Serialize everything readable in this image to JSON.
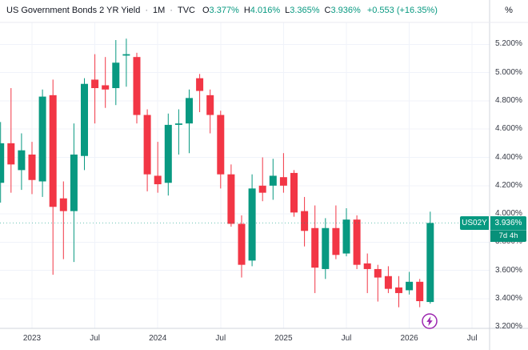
{
  "header": {
    "title": "US Government Bonds 2 YR Yield",
    "sep": "·",
    "interval": "1M",
    "source": "TVC",
    "ohlc": {
      "o_label": "O",
      "o": "3.377%",
      "h_label": "H",
      "h": "4.016%",
      "l_label": "L",
      "l": "3.365%",
      "c_label": "C",
      "c": "3.936%",
      "change": "+0.553 (+16.35%)"
    }
  },
  "price_axis": {
    "unit": "%",
    "ticks": [
      {
        "value": 5.2,
        "label": "5.200%"
      },
      {
        "value": 5.0,
        "label": "5.000%"
      },
      {
        "value": 4.8,
        "label": "4.800%"
      },
      {
        "value": 4.6,
        "label": "4.600%"
      },
      {
        "value": 4.4,
        "label": "4.400%"
      },
      {
        "value": 4.2,
        "label": "4.200%"
      },
      {
        "value": 4.0,
        "label": "4.000%"
      },
      {
        "value": 3.8,
        "label": "3.800%"
      },
      {
        "value": 3.6,
        "label": "3.600%"
      },
      {
        "value": 3.4,
        "label": "3.400%"
      },
      {
        "value": 3.2,
        "label": "3.200%"
      }
    ]
  },
  "time_axis": {
    "ticks": [
      {
        "label": "2023",
        "month_index": 3
      },
      {
        "label": "Jul",
        "month_index": 9
      },
      {
        "label": "2024",
        "month_index": 15
      },
      {
        "label": "Jul",
        "month_index": 21
      },
      {
        "label": "2025",
        "month_index": 27
      },
      {
        "label": "Jul",
        "month_index": 33
      },
      {
        "label": "2026",
        "month_index": 39
      },
      {
        "label": "Jul",
        "month_index": 45
      }
    ]
  },
  "price_badge": {
    "symbol": "US02Y",
    "price": "3.936%",
    "countdown": "7d 4h"
  },
  "colors": {
    "up": "#089981",
    "down": "#F23645",
    "badge": "#089981",
    "grid": "#f0f3fa",
    "axis_border": "#d1d4dc",
    "text": "#131722",
    "axis_text": "#363a45",
    "lightning_purple": "#9C27B0"
  },
  "chart_data": {
    "type": "candlestick",
    "title": "US Government Bonds 2 YR Yield, 1M, TVC",
    "ylabel": "Yield %",
    "ylim": [
      3.2,
      5.2
    ],
    "grid": true,
    "last_price": 3.936,
    "candles": [
      {
        "t": "Oct 2022",
        "o": 4.22,
        "h": 4.65,
        "l": 4.08,
        "c": 4.5
      },
      {
        "t": "Nov 2022",
        "o": 4.5,
        "h": 4.89,
        "l": 4.15,
        "c": 4.35
      },
      {
        "t": "Dec 2022",
        "o": 4.31,
        "h": 4.57,
        "l": 4.17,
        "c": 4.45
      },
      {
        "t": "Jan 2023",
        "o": 4.42,
        "h": 4.51,
        "l": 4.14,
        "c": 4.24
      },
      {
        "t": "Feb 2023",
        "o": 4.23,
        "h": 4.88,
        "l": 4.12,
        "c": 4.83
      },
      {
        "t": "Mar 2023",
        "o": 4.84,
        "h": 4.95,
        "l": 3.57,
        "c": 4.05
      },
      {
        "t": "Apr 2023",
        "o": 4.11,
        "h": 4.23,
        "l": 3.68,
        "c": 4.02
      },
      {
        "t": "May 2023",
        "o": 4.02,
        "h": 4.64,
        "l": 3.66,
        "c": 4.42
      },
      {
        "t": "Jun 2023",
        "o": 4.41,
        "h": 4.96,
        "l": 4.31,
        "c": 4.92
      },
      {
        "t": "Jul 2023",
        "o": 4.95,
        "h": 5.13,
        "l": 4.64,
        "c": 4.89
      },
      {
        "t": "Aug 2023",
        "o": 4.91,
        "h": 5.11,
        "l": 4.75,
        "c": 4.88
      },
      {
        "t": "Sep 2023",
        "o": 4.89,
        "h": 5.23,
        "l": 4.77,
        "c": 5.07
      },
      {
        "t": "Oct 2023",
        "o": 5.12,
        "h": 5.24,
        "l": 4.9,
        "c": 5.13
      },
      {
        "t": "Nov 2023",
        "o": 5.11,
        "h": 5.14,
        "l": 4.64,
        "c": 4.7
      },
      {
        "t": "Dec 2023",
        "o": 4.7,
        "h": 4.74,
        "l": 4.16,
        "c": 4.28
      },
      {
        "t": "Jan 2024",
        "o": 4.27,
        "h": 4.51,
        "l": 4.15,
        "c": 4.21
      },
      {
        "t": "Feb 2024",
        "o": 4.22,
        "h": 4.71,
        "l": 4.13,
        "c": 4.63
      },
      {
        "t": "Mar 2024",
        "o": 4.63,
        "h": 4.74,
        "l": 4.42,
        "c": 4.64
      },
      {
        "t": "Apr 2024",
        "o": 4.64,
        "h": 4.88,
        "l": 4.43,
        "c": 4.82
      },
      {
        "t": "May 2024",
        "o": 4.96,
        "h": 4.99,
        "l": 4.72,
        "c": 4.87
      },
      {
        "t": "Jun 2024",
        "o": 4.84,
        "h": 4.88,
        "l": 4.57,
        "c": 4.7
      },
      {
        "t": "Jul 2024",
        "o": 4.7,
        "h": 4.73,
        "l": 4.18,
        "c": 4.28
      },
      {
        "t": "Aug 2024",
        "o": 4.28,
        "h": 4.35,
        "l": 3.91,
        "c": 3.93
      },
      {
        "t": "Sep 2024",
        "o": 3.93,
        "h": 3.99,
        "l": 3.55,
        "c": 3.64
      },
      {
        "t": "Oct 2024",
        "o": 3.67,
        "h": 4.28,
        "l": 3.63,
        "c": 4.18
      },
      {
        "t": "Nov 2024",
        "o": 4.2,
        "h": 4.4,
        "l": 4.09,
        "c": 4.15
      },
      {
        "t": "Dec 2024",
        "o": 4.2,
        "h": 4.39,
        "l": 4.1,
        "c": 4.27
      },
      {
        "t": "Jan 2025",
        "o": 4.26,
        "h": 4.43,
        "l": 4.15,
        "c": 4.2
      },
      {
        "t": "Feb 2025",
        "o": 4.29,
        "h": 4.31,
        "l": 3.98,
        "c": 4.01
      },
      {
        "t": "Mar 2025",
        "o": 4.02,
        "h": 4.12,
        "l": 3.77,
        "c": 3.88
      },
      {
        "t": "Apr 2025",
        "o": 3.9,
        "h": 4.06,
        "l": 3.44,
        "c": 3.62
      },
      {
        "t": "May 2025",
        "o": 3.61,
        "h": 3.97,
        "l": 3.54,
        "c": 3.9
      },
      {
        "t": "Jun 2025",
        "o": 3.9,
        "h": 4.06,
        "l": 3.68,
        "c": 3.71
      },
      {
        "t": "Jul 2025",
        "o": 3.72,
        "h": 4.04,
        "l": 3.7,
        "c": 3.96
      },
      {
        "t": "Aug 2025",
        "o": 3.96,
        "h": 3.99,
        "l": 3.61,
        "c": 3.64
      },
      {
        "t": "Sep 2025",
        "o": 3.65,
        "h": 3.72,
        "l": 3.44,
        "c": 3.61
      },
      {
        "t": "Oct 2025",
        "o": 3.61,
        "h": 3.64,
        "l": 3.38,
        "c": 3.55
      },
      {
        "t": "Nov 2025",
        "o": 3.56,
        "h": 3.63,
        "l": 3.44,
        "c": 3.47
      },
      {
        "t": "Dec 2025",
        "o": 3.48,
        "h": 3.56,
        "l": 3.34,
        "c": 3.44
      },
      {
        "t": "Jan 2026",
        "o": 3.46,
        "h": 3.59,
        "l": 3.43,
        "c": 3.52
      },
      {
        "t": "Feb 2026",
        "o": 3.52,
        "h": 3.54,
        "l": 3.34,
        "c": 3.383
      },
      {
        "t": "Mar 2026",
        "o": 3.377,
        "h": 4.016,
        "l": 3.365,
        "c": 3.936
      }
    ]
  }
}
